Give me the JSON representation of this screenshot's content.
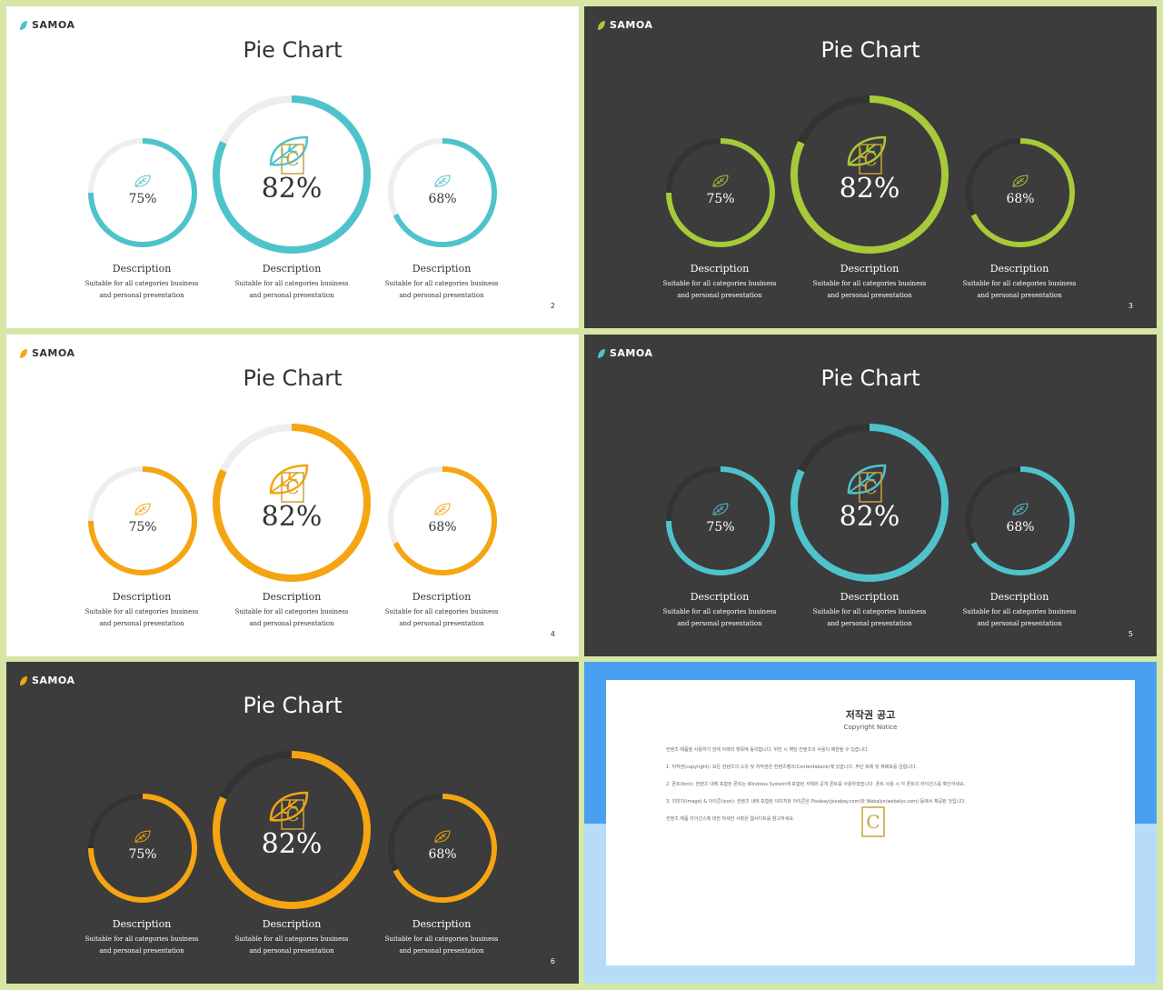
{
  "slides": [
    {
      "theme": "light",
      "ring": "#4fc3cc",
      "track": "#eeeeee",
      "brand": "SAMOA",
      "title": "Pie Chart",
      "small_left": "75%",
      "big": "82%",
      "small_right": "68%",
      "desc_title": "Description",
      "desc_line1": "Suitable for all categories business",
      "desc_line2": "and personal presentation",
      "page": "2",
      "text": "#333333",
      "leaf": "#4fc3cc"
    },
    {
      "theme": "dark",
      "ring": "#a8c93a",
      "track": "#333333",
      "brand": "SAMOA",
      "title": "Pie Chart",
      "small_left": "75%",
      "big": "82%",
      "small_right": "68%",
      "desc_title": "Description",
      "desc_line1": "Suitable for all categories business",
      "desc_line2": "and personal presentation",
      "page": "3",
      "text": "#ffffff",
      "leaf": "#a8c93a"
    },
    {
      "theme": "light",
      "ring": "#f5a511",
      "track": "#eeeeee",
      "brand": "SAMOA",
      "title": "Pie Chart",
      "small_left": "75%",
      "big": "82%",
      "small_right": "68%",
      "desc_title": "Description",
      "desc_line1": "Suitable for all categories business",
      "desc_line2": "and personal presentation",
      "page": "4",
      "text": "#333333",
      "leaf": "#f5a511"
    },
    {
      "theme": "dark",
      "ring": "#4fc3cc",
      "track": "#333333",
      "brand": "SAMOA",
      "title": "Pie Chart",
      "small_left": "75%",
      "big": "82%",
      "small_right": "68%",
      "desc_title": "Description",
      "desc_line1": "Suitable for all categories business",
      "desc_line2": "and personal presentation",
      "page": "5",
      "text": "#ffffff",
      "leaf": "#4fc3cc"
    },
    {
      "theme": "dark",
      "ring": "#f5a511",
      "track": "#333333",
      "brand": "SAMOA",
      "title": "Pie Chart",
      "small_left": "75%",
      "big": "82%",
      "small_right": "68%",
      "desc_title": "Description",
      "desc_line1": "Suitable for all categories business",
      "desc_line2": "and personal presentation",
      "page": "6",
      "text": "#ffffff",
      "leaf": "#f5a511"
    }
  ],
  "values": {
    "small_left": 0.75,
    "big": 0.82,
    "small_right": 0.68
  },
  "copyright": {
    "title": "저작권 공고",
    "subtitle": "Copyright Notice",
    "p1": "컨텐츠 제품을 사용하기 전에 아래의 항목에 동의합니다. 위반 시 해당 컨텐츠의 사용이 제한될 수 있습니다.",
    "p2": "1. 저작권(copyright): 모든 컨텐츠의 소유 및 저작권은 컨텐츠뱅크(Contentsbank)에 있습니다. 무단 복제 및 재배포를 금합니다.",
    "p3": "2. 폰트(font): 컨텐츠 내에 포함된 폰트는 Windows System에 포함된 서체와 공개 폰트를 사용하였습니다. 폰트 사용 시 각 폰트의 라이선스를 확인하세요.",
    "p4": "3. 이미지(image) & 아이콘(icon): 컨텐츠 내에 포함된 이미지와 아이콘은 Pixabay(pixabay.com)와 Webalys(webalys.com) 등에서 제공된 것입니다.",
    "p5": "컨텐츠 제품 라이선스에 대한 자세한 사항은 웹사이트를 참고하세요."
  }
}
